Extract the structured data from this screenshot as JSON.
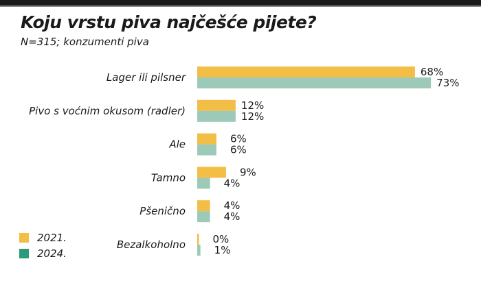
{
  "chart_data": {
    "type": "bar",
    "orientation": "horizontal",
    "title": "Koju vrstu piva najčešće pijete?",
    "subtitle": "N=315; konzumenti piva",
    "categories": [
      "Lager ili pilsner",
      "Pivo s voćnim okusom (radler)",
      "Ale",
      "Tamno",
      "Pšenično",
      "Bezalkoholno"
    ],
    "series": [
      {
        "name": "2021.",
        "values": [
          68,
          12,
          6,
          9,
          4,
          0
        ],
        "color": "#f2be45",
        "legend_color": "#f2be45"
      },
      {
        "name": "2024.",
        "values": [
          73,
          12,
          6,
          4,
          4,
          1
        ],
        "color": "#9dcab8",
        "legend_color": "#2a9a7c"
      }
    ],
    "value_suffix": "%",
    "legend_position": "bottom-left",
    "grid": false
  }
}
